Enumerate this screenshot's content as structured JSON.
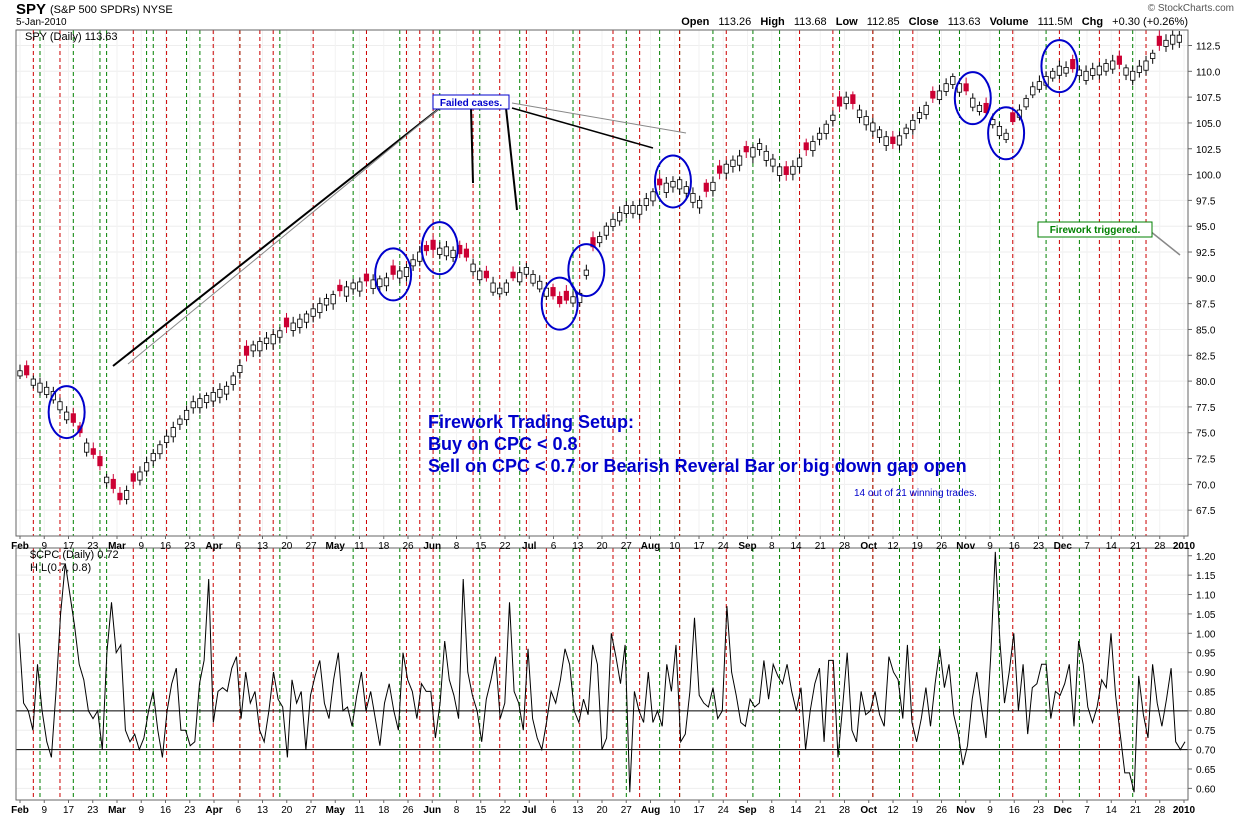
{
  "header": {
    "symbol": "SPY",
    "name": "(S&P 500 SPDRs) NYSE",
    "date": "5-Jan-2010",
    "copyright": "© StockCharts.com",
    "open_label": "Open",
    "open": "113.26",
    "high_label": "High",
    "high": "113.68",
    "low_label": "Low",
    "low": "112.85",
    "close_label": "Close",
    "close": "113.63",
    "volume_label": "Volume",
    "volume": "111.5M",
    "chg_label": "Chg",
    "chg": "+0.30 (+0.26%)"
  },
  "chart_data": [
    {
      "type": "candlestick",
      "title": "SPY (Daily) 113.63",
      "ylim": [
        65,
        114
      ],
      "y_ticks": [
        "67.5",
        "70.0",
        "72.5",
        "75.0",
        "77.5",
        "80.0",
        "82.5",
        "85.0",
        "87.5",
        "90.0",
        "92.5",
        "95.0",
        "97.5",
        "100.0",
        "102.5",
        "105.0",
        "107.5",
        "110.0",
        "112.5"
      ],
      "x_labels": [
        "Feb",
        "9",
        "17",
        "23",
        "Mar",
        "9",
        "16",
        "23",
        "Apr",
        "6",
        "13",
        "20",
        "27",
        "May",
        "11",
        "18",
        "26",
        "Jun",
        "8",
        "15",
        "22",
        "Jul",
        "6",
        "13",
        "20",
        "27",
        "Aug",
        "10",
        "17",
        "24",
        "Sep",
        "8",
        "14",
        "21",
        "28",
        "Oct",
        "12",
        "19",
        "26",
        "Nov",
        "9",
        "16",
        "23",
        "Dec",
        "7",
        "14",
        "21",
        "28",
        "2010"
      ],
      "x_label_bold": [
        "Feb",
        "Mar",
        "Apr",
        "May",
        "Jun",
        "Jul",
        "Aug",
        "Sep",
        "Oct",
        "Nov",
        "Dec",
        "2010"
      ],
      "close_path": [
        [
          0,
          81
        ],
        [
          5,
          79
        ],
        [
          10,
          74
        ],
        [
          15,
          68.5
        ],
        [
          20,
          73
        ],
        [
          26,
          78
        ],
        [
          31,
          79.5
        ],
        [
          35,
          83.5
        ],
        [
          38,
          84.5
        ],
        [
          42,
          86
        ],
        [
          46,
          88
        ],
        [
          50,
          89.5
        ],
        [
          55,
          90
        ],
        [
          58,
          91
        ],
        [
          60,
          92.5
        ],
        [
          64,
          93
        ],
        [
          67,
          92
        ],
        [
          70,
          90
        ],
        [
          72,
          89
        ],
        [
          76,
          91
        ],
        [
          79,
          89
        ],
        [
          81,
          87.5
        ],
        [
          84,
          88.5
        ],
        [
          86,
          93
        ],
        [
          88,
          95
        ],
        [
          91,
          97
        ],
        [
          93,
          97
        ],
        [
          96,
          99
        ],
        [
          99,
          99.5
        ],
        [
          102,
          97.5
        ],
        [
          106,
          101
        ],
        [
          111,
          103
        ],
        [
          115,
          100
        ],
        [
          120,
          104
        ],
        [
          124,
          107.5
        ],
        [
          128,
          105
        ],
        [
          131,
          103
        ],
        [
          135,
          106
        ],
        [
          140,
          109.5
        ],
        [
          145,
          106
        ],
        [
          148,
          104
        ],
        [
          152,
          108.5
        ],
        [
          156,
          110.5
        ],
        [
          160,
          110
        ],
        [
          164,
          111
        ],
        [
          167,
          110
        ],
        [
          169,
          111
        ],
        [
          171,
          112.5
        ],
        [
          173,
          113.5
        ]
      ],
      "down_days": [
        1,
        8,
        9,
        11,
        12,
        14,
        15,
        17,
        34,
        40,
        48,
        52,
        56,
        61,
        62,
        66,
        67,
        70,
        74,
        80,
        81,
        82,
        86,
        96,
        103,
        105,
        109,
        115,
        118,
        123,
        125,
        131,
        137,
        142,
        145,
        149,
        158,
        165,
        171
      ],
      "callout_failed": "Failed cases.",
      "callout_triggered": "Firework triggered.",
      "setup_title": "Firework Trading Setup:",
      "setup_buy": "Buy on CPC < 0.8",
      "setup_sell": "Sell on CPC < 0.7 or Bearish Reveral Bar or big down gap open",
      "setup_stats": "14 out of 21 winning trades.",
      "circles_day_index": [
        7,
        56,
        63,
        81,
        85,
        98,
        143,
        148,
        156
      ],
      "buy_signal_days": [
        3,
        8,
        12,
        13,
        19,
        20,
        25,
        27,
        33,
        39,
        50,
        57,
        63,
        69,
        75,
        83,
        91,
        96,
        99,
        104,
        110,
        114,
        123,
        128,
        132,
        138,
        141,
        147,
        154,
        159,
        167
      ],
      "sell_signal_days": [
        2,
        6,
        17,
        22,
        29,
        33,
        36,
        38,
        44,
        52,
        58,
        60,
        62,
        68,
        72,
        76,
        79,
        84,
        89,
        93,
        99,
        106,
        117,
        122,
        128,
        134,
        149,
        156,
        162,
        165,
        169
      ]
    },
    {
      "type": "line",
      "title": "$CPC (Daily) 0.72",
      "legend": [
        "$CPC (Daily) 0.72",
        "H L(0.7, 0.8)"
      ],
      "ylim": [
        0.57,
        1.22
      ],
      "y_ticks": [
        "0.60",
        "0.65",
        "0.70",
        "0.75",
        "0.80",
        "0.85",
        "0.90",
        "0.95",
        "1.00",
        "1.05",
        "1.10",
        "1.15",
        "1.20"
      ],
      "hlines": [
        0.7,
        0.8
      ],
      "values": [
        1.0,
        0.82,
        0.8,
        0.75,
        0.92,
        0.8,
        0.72,
        0.68,
        0.85,
        1.05,
        1.18,
        1.1,
        1.02,
        0.92,
        0.88,
        0.8,
        0.78,
        0.8,
        0.7,
        0.95,
        1.08,
        0.95,
        0.97,
        0.75,
        0.72,
        0.74,
        0.7,
        0.73,
        0.8,
        0.85,
        0.75,
        0.68,
        0.8,
        0.87,
        0.91,
        0.75,
        0.75,
        0.71,
        0.72,
        0.87,
        0.93,
        1.14,
        0.77,
        0.85,
        0.86,
        0.85,
        0.91,
        0.94,
        0.78,
        0.9,
        0.82,
        0.85,
        0.75,
        0.72,
        0.8,
        0.9,
        0.83,
        0.81,
        0.68,
        0.88,
        0.82,
        0.85,
        0.7,
        0.84,
        0.89,
        0.93,
        0.82,
        0.78,
        0.88,
        0.95,
        0.8,
        0.81,
        0.76,
        0.84,
        0.9,
        0.8,
        0.85,
        0.78,
        0.71,
        0.82,
        0.87,
        0.8,
        0.75,
        0.95,
        0.88,
        0.85,
        0.78,
        0.87,
        0.85,
        0.85,
        0.73,
        0.82,
        0.98,
        0.88,
        0.84,
        0.78,
        1.14,
        0.9,
        0.84,
        0.8,
        0.72,
        0.83,
        0.88,
        0.94,
        0.78,
        0.82,
        1.08,
        0.85,
        0.82,
        0.75,
        0.96,
        0.78,
        0.73,
        0.7,
        0.77,
        0.85,
        0.82,
        0.88,
        0.96,
        0.92,
        0.8,
        0.77,
        0.83,
        0.79,
        0.97,
        0.92,
        0.7,
        0.73,
        1.0,
        0.94,
        0.87,
        0.97,
        0.59,
        0.85,
        0.8,
        0.77,
        0.9,
        0.77,
        0.8,
        0.76,
        0.92,
        0.85,
        0.97,
        0.72,
        0.74,
        0.85,
        1.04,
        0.84,
        0.82,
        0.81,
        0.86,
        0.78,
        0.8,
        1.07,
        0.9,
        0.84,
        0.77,
        0.76,
        0.83,
        0.81,
        0.82,
        0.93,
        0.83,
        0.92,
        0.89,
        0.87,
        0.92,
        0.85,
        0.8,
        0.86,
        0.7,
        0.8,
        0.87,
        0.91,
        0.72,
        0.93,
        0.93,
        0.68,
        0.81,
        0.95,
        0.75,
        0.72,
        0.85,
        0.79,
        0.8,
        0.85,
        0.79,
        0.76,
        0.94,
        0.9,
        0.88,
        0.78,
        0.97,
        0.77,
        0.72,
        0.78,
        0.86,
        0.76,
        0.87,
        0.96,
        0.86,
        0.92,
        0.79,
        0.74,
        0.66,
        0.71,
        0.83,
        0.9,
        0.81,
        0.73,
        0.94,
        1.21,
        0.98,
        0.82,
        0.9,
        1.0,
        0.8,
        0.92,
        0.74,
        0.86,
        0.87,
        0.92,
        0.92,
        0.78,
        0.85,
        0.84,
        0.87,
        0.92,
        0.76,
        0.98,
        0.92,
        0.81,
        0.77,
        0.81,
        0.88,
        0.86,
        1.0,
        0.84,
        0.74,
        0.64,
        0.64,
        0.59,
        0.89,
        0.79,
        0.73,
        0.92,
        0.82,
        0.76,
        0.83,
        0.91,
        0.72,
        0.7,
        0.72
      ]
    }
  ]
}
